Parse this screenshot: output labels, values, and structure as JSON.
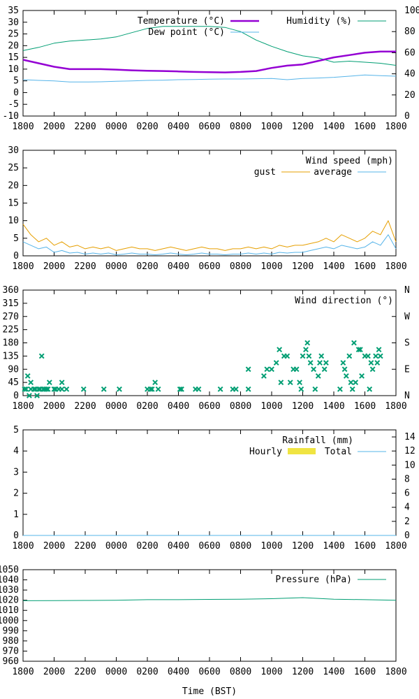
{
  "x_ticks": [
    "1800",
    "2000",
    "2200",
    "0000",
    "0200",
    "0400",
    "0600",
    "0800",
    "1000",
    "1200",
    "1400",
    "1600",
    "1800"
  ],
  "x_title": "Time (BST)",
  "colors": {
    "temperature": "#9400d3",
    "dew_point": "#56b4e9",
    "humidity": "#009e73",
    "gust": "#e69f00",
    "wind_avg": "#56b4e9",
    "wind_dir": "#009e73",
    "rain_hourly": "#f0e442",
    "rain_total": "#56b4e9",
    "pressure": "#009e73"
  },
  "chart_data": [
    {
      "type": "line",
      "legend": [
        "Temperature (°C)",
        "Dew point (°C)",
        "Humidity (%)"
      ],
      "ylim": [
        -10,
        35
      ],
      "yticks": [
        "35",
        "30",
        "25",
        "20",
        "15",
        "10",
        "5",
        "0",
        "-5",
        "-10"
      ],
      "y2lim": [
        0,
        100
      ],
      "y2ticks": [
        "100",
        "80",
        "60",
        "40",
        "20",
        "0"
      ],
      "x": [
        0,
        1,
        2,
        3,
        4,
        5,
        6,
        7,
        8,
        9,
        10,
        11,
        12,
        13,
        14,
        15,
        16,
        17,
        18,
        19,
        20,
        21,
        22,
        23,
        24
      ],
      "series": [
        {
          "name": "Temperature (°C)",
          "axis": "left",
          "values": [
            14,
            12.5,
            11,
            10,
            10,
            10,
            9.8,
            9.5,
            9.3,
            9.2,
            9.0,
            8.8,
            8.7,
            8.6,
            8.8,
            9.2,
            10.5,
            11.5,
            12,
            13.5,
            15,
            16,
            17,
            17.5,
            17.5
          ]
        },
        {
          "name": "Dew point (°C)",
          "axis": "left",
          "values": [
            5.5,
            5.2,
            5,
            4.5,
            4.5,
            4.6,
            4.8,
            5,
            5.2,
            5.3,
            5.5,
            5.6,
            5.7,
            5.8,
            5.8,
            5.9,
            6,
            5.5,
            6,
            6.2,
            6.5,
            7,
            7.5,
            7.2,
            7
          ]
        },
        {
          "name": "Humidity (%)",
          "axis": "right",
          "values": [
            62,
            65,
            69,
            71,
            72,
            73,
            75,
            79,
            83,
            85,
            85,
            85,
            85,
            84,
            80,
            72,
            66,
            61,
            57,
            55,
            51,
            52,
            51,
            50,
            48
          ]
        }
      ]
    },
    {
      "type": "line",
      "legend_title": "Wind speed (mph)",
      "legend": [
        "gust",
        "average"
      ],
      "ylim": [
        0,
        30
      ],
      "yticks": [
        "30",
        "25",
        "20",
        "15",
        "10",
        "5",
        "0"
      ],
      "x": [
        0,
        0.5,
        1,
        1.5,
        2,
        2.5,
        3,
        3.5,
        4,
        4.5,
        5,
        5.5,
        6,
        6.5,
        7,
        7.5,
        8,
        8.5,
        9,
        9.5,
        10,
        10.5,
        11,
        11.5,
        12,
        12.5,
        13,
        13.5,
        14,
        14.5,
        15,
        15.5,
        16,
        16.5,
        17,
        17.5,
        18,
        18.5,
        19,
        19.5,
        20,
        20.5,
        21,
        21.5,
        22,
        22.5,
        23,
        23.5,
        24
      ],
      "series": [
        {
          "name": "gust",
          "values": [
            9,
            6,
            4,
            5,
            3,
            4,
            2.5,
            3,
            2,
            2.5,
            2,
            2.5,
            1.5,
            2,
            2.5,
            2,
            2,
            1.5,
            2,
            2.5,
            2,
            1.5,
            2,
            2.5,
            2,
            2,
            1.5,
            2,
            2,
            2.5,
            2,
            2.5,
            2,
            3,
            2.5,
            3,
            3,
            3.5,
            4,
            5,
            4,
            6,
            5,
            4,
            5,
            7,
            6,
            10,
            4
          ]
        },
        {
          "name": "average",
          "values": [
            4,
            3,
            2,
            2.5,
            1,
            1.5,
            0.8,
            1,
            0.5,
            0.8,
            0.5,
            0.8,
            0.3,
            0.5,
            0.8,
            0.5,
            0.5,
            0.3,
            0.5,
            0.8,
            0.5,
            0.3,
            0.5,
            0.8,
            0.5,
            0.5,
            0.3,
            0.5,
            0.5,
            0.8,
            0.5,
            0.8,
            0.5,
            1,
            0.8,
            1,
            1,
            1.5,
            2,
            2.5,
            2,
            3,
            2.5,
            2,
            2.5,
            4,
            3,
            6,
            2
          ]
        }
      ]
    },
    {
      "type": "scatter",
      "legend": [
        "Wind direction (°)"
      ],
      "ylim": [
        0,
        360
      ],
      "yticks": [
        "360",
        "315",
        "270",
        "225",
        "180",
        "135",
        "90",
        "45",
        "0"
      ],
      "y2ticks": [
        "N",
        "W",
        "S",
        "E",
        "N"
      ],
      "points": [
        [
          0.1,
          22
        ],
        [
          0.2,
          22
        ],
        [
          0.3,
          67
        ],
        [
          0.4,
          0
        ],
        [
          0.5,
          22
        ],
        [
          0.5,
          45
        ],
        [
          0.7,
          22
        ],
        [
          0.8,
          22
        ],
        [
          0.9,
          0
        ],
        [
          1,
          22
        ],
        [
          1.1,
          22
        ],
        [
          1.2,
          135
        ],
        [
          1.3,
          22
        ],
        [
          1.4,
          22
        ],
        [
          1.5,
          22
        ],
        [
          1.6,
          22
        ],
        [
          1.7,
          45
        ],
        [
          2,
          22
        ],
        [
          2.1,
          22
        ],
        [
          2.3,
          22
        ],
        [
          2.5,
          45
        ],
        [
          2.5,
          22
        ],
        [
          2.8,
          22
        ],
        [
          3.9,
          22
        ],
        [
          5.2,
          22
        ],
        [
          6.2,
          22
        ],
        [
          8,
          22
        ],
        [
          8.2,
          22
        ],
        [
          8.3,
          22
        ],
        [
          8.5,
          45
        ],
        [
          8.7,
          22
        ],
        [
          10.1,
          22
        ],
        [
          10.2,
          22
        ],
        [
          11.1,
          22
        ],
        [
          11.3,
          22
        ],
        [
          12.7,
          22
        ],
        [
          13.5,
          22
        ],
        [
          13.7,
          22
        ],
        [
          14.5,
          90
        ],
        [
          14.5,
          22
        ],
        [
          15.5,
          67
        ],
        [
          15.7,
          90
        ],
        [
          16,
          90
        ],
        [
          16.3,
          112
        ],
        [
          16.5,
          157
        ],
        [
          16.6,
          45
        ],
        [
          16.8,
          135
        ],
        [
          17,
          135
        ],
        [
          17.2,
          45
        ],
        [
          17.4,
          90
        ],
        [
          17.6,
          90
        ],
        [
          17.8,
          45
        ],
        [
          17.9,
          22
        ],
        [
          18,
          135
        ],
        [
          18.2,
          157
        ],
        [
          18.3,
          180
        ],
        [
          18.4,
          135
        ],
        [
          18.5,
          112
        ],
        [
          18.7,
          90
        ],
        [
          18.8,
          22
        ],
        [
          19,
          67
        ],
        [
          19.1,
          112
        ],
        [
          19.2,
          135
        ],
        [
          19.4,
          90
        ],
        [
          19.5,
          112
        ],
        [
          20.4,
          22
        ],
        [
          20.6,
          112
        ],
        [
          20.7,
          90
        ],
        [
          20.8,
          67
        ],
        [
          21,
          135
        ],
        [
          21.1,
          45
        ],
        [
          21.2,
          22
        ],
        [
          21.3,
          180
        ],
        [
          21.4,
          45
        ],
        [
          21.6,
          157
        ],
        [
          21.7,
          157
        ],
        [
          21.8,
          67
        ],
        [
          22,
          135
        ],
        [
          22.2,
          135
        ],
        [
          22.3,
          22
        ],
        [
          22.4,
          112
        ],
        [
          22.5,
          90
        ],
        [
          22.7,
          135
        ],
        [
          22.8,
          112
        ],
        [
          22.9,
          157
        ],
        [
          23,
          135
        ]
      ]
    },
    {
      "type": "area",
      "legend_title": "Rainfall (mm)",
      "legend": [
        "Hourly",
        "Total"
      ],
      "ylim": [
        0,
        5
      ],
      "yticks": [
        "5",
        "4",
        "3",
        "2",
        "1",
        "0"
      ],
      "y2lim": [
        0,
        15
      ],
      "y2ticks": [
        "14",
        "12",
        "10",
        "8",
        "6",
        "4",
        "2",
        "0"
      ],
      "x": [
        0,
        24
      ],
      "series": [
        {
          "name": "Hourly",
          "values": [
            0,
            0
          ]
        },
        {
          "name": "Total",
          "values": [
            0,
            0
          ]
        }
      ]
    },
    {
      "type": "line",
      "legend": [
        "Pressure (hPa)"
      ],
      "ylim": [
        960,
        1050
      ],
      "yticks": [
        "1050",
        "1040",
        "1030",
        "1020",
        "1010",
        "1000",
        "990",
        "980",
        "970",
        "960"
      ],
      "x": [
        0,
        2,
        4,
        6,
        8,
        10,
        12,
        14,
        16,
        18,
        20,
        22,
        24
      ],
      "series": [
        {
          "name": "Pressure (hPa)",
          "values": [
            1019.5,
            1019.6,
            1019.8,
            1020,
            1020.5,
            1020.5,
            1020.8,
            1021,
            1021.5,
            1022.5,
            1021,
            1020.5,
            1020
          ]
        }
      ]
    }
  ]
}
